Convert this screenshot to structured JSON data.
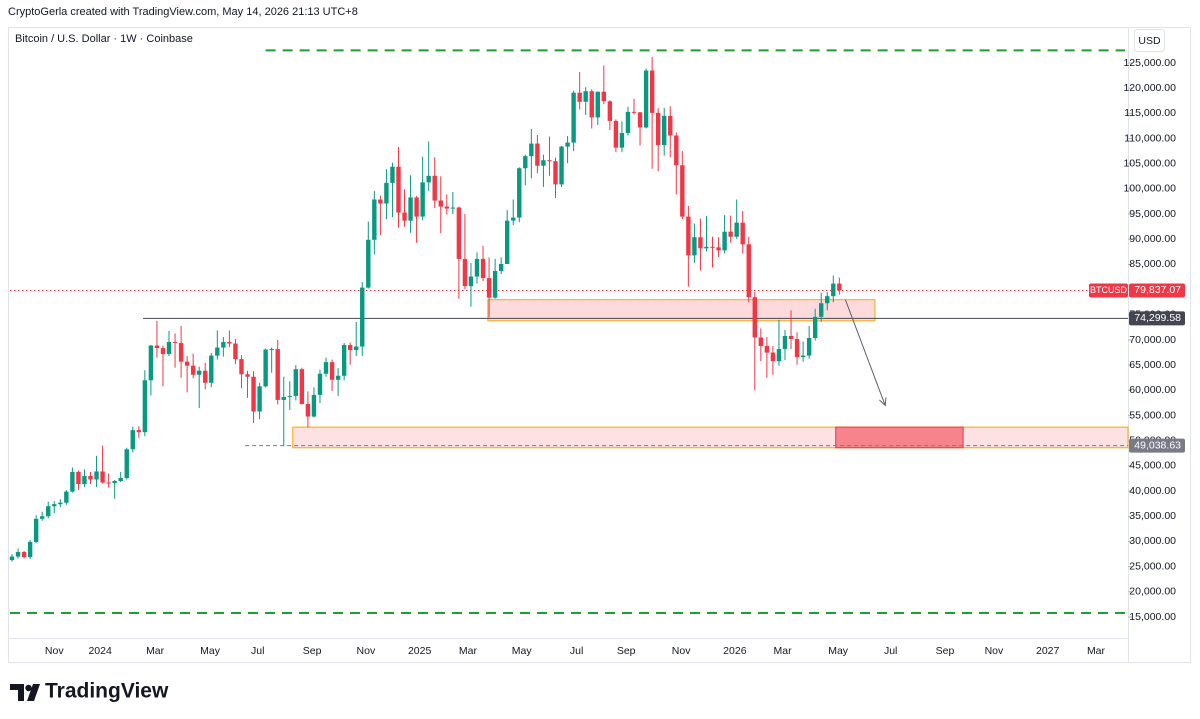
{
  "chart_data": {
    "type": "candlestick",
    "attribution": "CryptoGerla created with TradingView.com, May 14, 2026 21:13 UTC+8",
    "title": "Bitcoin / U.S. Dollar · 1W · Coinbase",
    "currency": "USD",
    "brand": "TradingView",
    "up_color": "#089981",
    "down_color": "#f23645",
    "xlim": [
      -0.33,
      184.8
    ],
    "ylim": [
      6462,
      131948
    ],
    "xticks": [
      {
        "value": 7,
        "label": "Nov"
      },
      {
        "value": 14.6,
        "label": "2024"
      },
      {
        "value": 23.7,
        "label": "Mar"
      },
      {
        "value": 32.8,
        "label": "May"
      },
      {
        "value": 40.7,
        "label": "Jul"
      },
      {
        "value": 49.7,
        "label": "Sep"
      },
      {
        "value": 58.6,
        "label": "Nov"
      },
      {
        "value": 67.5,
        "label": "2025"
      },
      {
        "value": 75.5,
        "label": "Mar"
      },
      {
        "value": 84.4,
        "label": "May"
      },
      {
        "value": 93.5,
        "label": "Jul"
      },
      {
        "value": 101.7,
        "label": "Sep"
      },
      {
        "value": 110.8,
        "label": "Nov"
      },
      {
        "value": 119.7,
        "label": "2026"
      },
      {
        "value": 127.6,
        "label": "Mar"
      },
      {
        "value": 136.8,
        "label": "May"
      },
      {
        "value": 145.5,
        "label": "Jul"
      },
      {
        "value": 154.5,
        "label": "Sep"
      },
      {
        "value": 162.6,
        "label": "Nov"
      },
      {
        "value": 171.5,
        "label": "2027"
      },
      {
        "value": 179.5,
        "label": "Mar"
      }
    ],
    "yticks": [
      {
        "value": 15000,
        "label": "15,000.00"
      },
      {
        "value": 20000,
        "label": "20,000.00"
      },
      {
        "value": 25000,
        "label": "25,000.00"
      },
      {
        "value": 30000,
        "label": "30,000.00"
      },
      {
        "value": 35000,
        "label": "35,000.00"
      },
      {
        "value": 40000,
        "label": "40,000.00"
      },
      {
        "value": 45000,
        "label": "45,000.00"
      },
      {
        "value": 50000,
        "label": "50,000.00"
      },
      {
        "value": 55000,
        "label": "55,000.00"
      },
      {
        "value": 60000,
        "label": "60,000.00"
      },
      {
        "value": 65000,
        "label": "65,000.00"
      },
      {
        "value": 70000,
        "label": "70,000.00"
      },
      {
        "value": 75000,
        "label": "75,000.00"
      },
      {
        "value": 80000,
        "label": "80,000.00"
      },
      {
        "value": 85000,
        "label": "85,000.00"
      },
      {
        "value": 90000,
        "label": "90,000.00"
      },
      {
        "value": 95000,
        "label": "95,000.00"
      },
      {
        "value": 100000,
        "label": "100,000.00"
      },
      {
        "value": 105000,
        "label": "105,000.00"
      },
      {
        "value": 110000,
        "label": "110,000.00"
      },
      {
        "value": 115000,
        "label": "115,000.00"
      },
      {
        "value": 120000,
        "label": "120,000.00"
      },
      {
        "value": 125000,
        "label": "125,000.00"
      }
    ],
    "open": [
      26300,
      27000,
      27900,
      26900,
      29900,
      34500,
      35000,
      37000,
      37400,
      37700,
      39900,
      43800,
      41400,
      43000,
      42300,
      43900,
      41700,
      41600,
      42000,
      42600,
      48300,
      52100,
      51700,
      62000,
      68900,
      68400,
      67200,
      69600,
      69400,
      65700,
      64900,
      63100,
      63900,
      61500,
      66900,
      68500,
      69600,
      69300,
      66200,
      63200,
      62700,
      55800,
      60800,
      68100,
      68200,
      58100,
      58700,
      58900,
      64200,
      57300,
      54800,
      59100,
      63300,
      65600,
      62100,
      62900,
      69000,
      68000,
      68700,
      80400,
      89900,
      97900,
      97100,
      101200,
      104400,
      95300,
      93700,
      98300,
      94500,
      101300,
      102600,
      97700,
      96500,
      96100,
      96300,
      86100,
      80700,
      82600,
      86100,
      82300,
      78400,
      83700,
      85100,
      93700,
      94300,
      104100,
      106500,
      109000,
      104600,
      105700,
      105500,
      100900,
      108400,
      109200,
      119100,
      117300,
      119400,
      114200,
      119300,
      117400,
      113500,
      108200,
      111100,
      115300,
      115200,
      112200,
      123500,
      115100,
      108700,
      114500,
      110600,
      104700,
      94500,
      86800,
      90400,
      88200,
      88500,
      88400,
      87800,
      91500,
      90500,
      93300,
      89000,
      78500,
      70500,
      68800,
      67500,
      65800,
      68200,
      70800,
      70200,
      66600,
      66900,
      70400,
      74600,
      77300,
      78700,
      81200
    ],
    "high": [
      27500,
      28600,
      28100,
      30300,
      35200,
      35900,
      37900,
      38000,
      38400,
      40200,
      44700,
      44100,
      44300,
      43800,
      47000,
      49000,
      43500,
      42200,
      43800,
      48600,
      52800,
      52900,
      64000,
      69000,
      73800,
      68900,
      71800,
      71300,
      72800,
      66800,
      67300,
      64700,
      65500,
      67400,
      71900,
      70600,
      71900,
      70200,
      67000,
      63900,
      63800,
      61500,
      68300,
      68500,
      70000,
      62700,
      61800,
      65000,
      64500,
      59800,
      60600,
      64100,
      66500,
      66100,
      64400,
      69400,
      69500,
      73600,
      81500,
      93500,
      99600,
      98700,
      103900,
      105200,
      108300,
      99900,
      102700,
      98600,
      106400,
      109400,
      106300,
      102500,
      98900,
      99400,
      96500,
      95000,
      85300,
      87400,
      88700,
      86400,
      86100,
      86400,
      95800,
      97900,
      104300,
      106800,
      111900,
      110700,
      106800,
      110400,
      106200,
      108500,
      110500,
      119500,
      123200,
      120200,
      119800,
      119300,
      124500,
      117600,
      113800,
      113400,
      116300,
      117900,
      115300,
      123900,
      126200,
      116000,
      116100,
      116400,
      111200,
      107500,
      96600,
      93100,
      94100,
      94600,
      90500,
      90400,
      94800,
      94700,
      97900,
      95600,
      90500,
      79500,
      72300,
      70600,
      68800,
      74000,
      72000,
      75900,
      71500,
      69700,
      72800,
      76200,
      79400,
      79500,
      82800,
      82400
    ],
    "low": [
      26000,
      26600,
      26600,
      26500,
      29700,
      34100,
      34600,
      35600,
      36800,
      37300,
      39700,
      40200,
      40800,
      41400,
      40800,
      41500,
      40700,
      38500,
      41800,
      42300,
      47700,
      50600,
      50900,
      59000,
      66500,
      60800,
      66800,
      64500,
      62500,
      59600,
      62400,
      56500,
      60200,
      60600,
      66100,
      66700,
      68600,
      65200,
      60400,
      58500,
      53500,
      54300,
      60600,
      63500,
      57200,
      49000,
      56100,
      58000,
      57200,
      52600,
      54600,
      57500,
      62700,
      59900,
      58900,
      62000,
      65100,
      66800,
      66800,
      80200,
      87000,
      90800,
      94000,
      94400,
      92300,
      92500,
      91300,
      89300,
      93800,
      99600,
      96200,
      91200,
      94900,
      95000,
      78200,
      80100,
      76600,
      81200,
      81700,
      74500,
      78200,
      83100,
      85100,
      92800,
      93400,
      100700,
      102100,
      103100,
      100400,
      102600,
      98200,
      100400,
      105100,
      107500,
      115800,
      114700,
      112000,
      112700,
      116800,
      111700,
      107300,
      107300,
      110600,
      114800,
      108600,
      112000,
      104000,
      103500,
      106600,
      106300,
      98900,
      94000,
      80600,
      85300,
      83800,
      87600,
      84400,
      86500,
      87200,
      89300,
      90100,
      87200,
      77500,
      60000,
      65800,
      62500,
      63100,
      64900,
      66000,
      68200,
      65100,
      65700,
      66300,
      69900,
      73600,
      75900,
      77500,
      79000
    ],
    "close": [
      27000,
      27900,
      26900,
      29900,
      34500,
      35000,
      37000,
      37400,
      37700,
      39900,
      43800,
      41400,
      43000,
      42300,
      43900,
      41700,
      41600,
      42000,
      42600,
      48300,
      52100,
      51700,
      62000,
      68900,
      68400,
      67200,
      69600,
      69400,
      65700,
      64900,
      63100,
      63900,
      61500,
      66900,
      68500,
      69600,
      69300,
      66200,
      63200,
      62700,
      55800,
      60800,
      68100,
      68200,
      58100,
      58700,
      58900,
      64200,
      57300,
      54800,
      59100,
      63300,
      65600,
      62100,
      62900,
      69000,
      68000,
      68700,
      80400,
      89900,
      97900,
      97100,
      101200,
      104400,
      95300,
      93700,
      98300,
      94500,
      101300,
      102600,
      97700,
      96500,
      96100,
      96300,
      86100,
      80700,
      82600,
      86100,
      82300,
      78400,
      83700,
      85100,
      93700,
      94300,
      104100,
      106500,
      109000,
      104600,
      105700,
      105500,
      100900,
      108400,
      109200,
      119100,
      117300,
      119400,
      114200,
      119300,
      117400,
      113500,
      108200,
      111100,
      115300,
      115200,
      112200,
      123500,
      115100,
      108700,
      114500,
      110600,
      104700,
      94500,
      86800,
      90400,
      88200,
      88500,
      88400,
      87800,
      91500,
      90500,
      93300,
      89000,
      78500,
      70500,
      68800,
      67500,
      65800,
      68200,
      70800,
      70200,
      66600,
      66900,
      70400,
      74600,
      77300,
      78700,
      81200,
      79837.07
    ],
    "levels": [
      {
        "value": 127500,
        "x": [
          42,
          184.3
        ],
        "color": "#1e9e33"
      },
      {
        "value": 15800,
        "x": [
          -0.33,
          184.3
        ],
        "color": "#1e9e33"
      }
    ],
    "zones": [
      {
        "y": [
          73800,
          78000
        ],
        "x": [
          78.8,
          142.9
        ],
        "fill": "rgba(242,54,69,0.18)",
        "stroke": "#f7a600"
      },
      {
        "y": [
          48600,
          52700
        ],
        "x": [
          46.5,
          184.8
        ],
        "fill": "rgba(242,54,69,0.15)",
        "stroke": "#f7a600"
      },
      {
        "y": [
          48600,
          52700
        ],
        "x": [
          136.4,
          157.5
        ],
        "fill": "rgba(242,54,69,0.55)",
        "stroke": "#f23645"
      }
    ],
    "arrow": {
      "x": [
        138,
        144.6
      ],
      "y": [
        78000,
        57000
      ],
      "color": "#5d606b"
    },
    "price_lines": [
      {
        "name": "BTCUSD",
        "value": 79837.07,
        "label": "79,837.07",
        "color": "#f23645",
        "style": "dotted",
        "x_start": -0.33
      },
      {
        "value": 74299.58,
        "label": "74,299.58",
        "color": "#434651",
        "style": "solid",
        "x_start": 21.7
      },
      {
        "value": 49038.63,
        "label": "49,038.63",
        "color": "#787b86",
        "style": "dashed",
        "x_start": 38.6
      }
    ]
  }
}
